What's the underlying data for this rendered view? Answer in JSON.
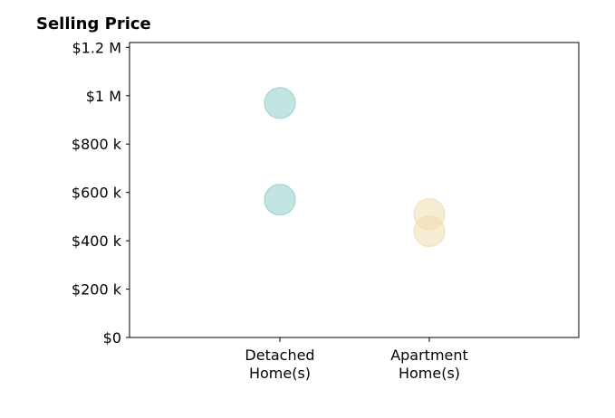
{
  "chart_data": {
    "type": "scatter",
    "title": "Selling Price",
    "xlabel": "",
    "ylabel": "",
    "categories": [
      [
        "Detached",
        "Home(s)"
      ],
      [
        "Apartment",
        "Home(s)"
      ]
    ],
    "ylim": [
      0,
      1220000
    ],
    "yticks": [
      {
        "value": 0,
        "label": "$0"
      },
      {
        "value": 200000,
        "label": "$200 k"
      },
      {
        "value": 400000,
        "label": "$400 k"
      },
      {
        "value": 600000,
        "label": "$600 k"
      },
      {
        "value": 800000,
        "label": "$800 k"
      },
      {
        "value": 1000000,
        "label": "$1 M"
      },
      {
        "value": 1200000,
        "label": "$1.2 M"
      }
    ],
    "series": [
      {
        "category_index": 0,
        "color": "#8fcfc8",
        "values": [
          970000,
          570000
        ]
      },
      {
        "category_index": 1,
        "color": "#f0ddb0",
        "values": [
          510000,
          440000
        ]
      }
    ],
    "grid": false,
    "legend": "none"
  }
}
